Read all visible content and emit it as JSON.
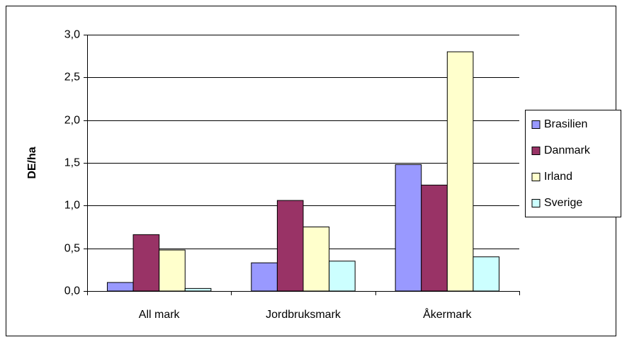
{
  "chart_data": {
    "type": "bar",
    "y_label": "DE/ha",
    "categories": [
      "All mark",
      "Jordbruksmark",
      "Åkermark"
    ],
    "series": [
      {
        "name": "Brasilien",
        "color": "#9999ff",
        "values": [
          0.1,
          0.33,
          1.48
        ]
      },
      {
        "name": "Danmark",
        "color": "#993366",
        "values": [
          0.66,
          1.06,
          1.24
        ]
      },
      {
        "name": "Irland",
        "color": "#ffffcc",
        "values": [
          0.48,
          0.75,
          2.8
        ]
      },
      {
        "name": "Sverige",
        "color": "#ccffff",
        "values": [
          0.03,
          0.35,
          0.4
        ]
      }
    ],
    "ylim": [
      0,
      3
    ],
    "yticks": [
      {
        "value": 0,
        "label": "0,0"
      },
      {
        "value": 0.5,
        "label": "0,5"
      },
      {
        "value": 1,
        "label": "1,0"
      },
      {
        "value": 1.5,
        "label": "1,5"
      },
      {
        "value": 2,
        "label": "2,0"
      },
      {
        "value": 2.5,
        "label": "2,5"
      },
      {
        "value": 3,
        "label": "3,0"
      }
    ],
    "grid": true,
    "legend": "right"
  }
}
